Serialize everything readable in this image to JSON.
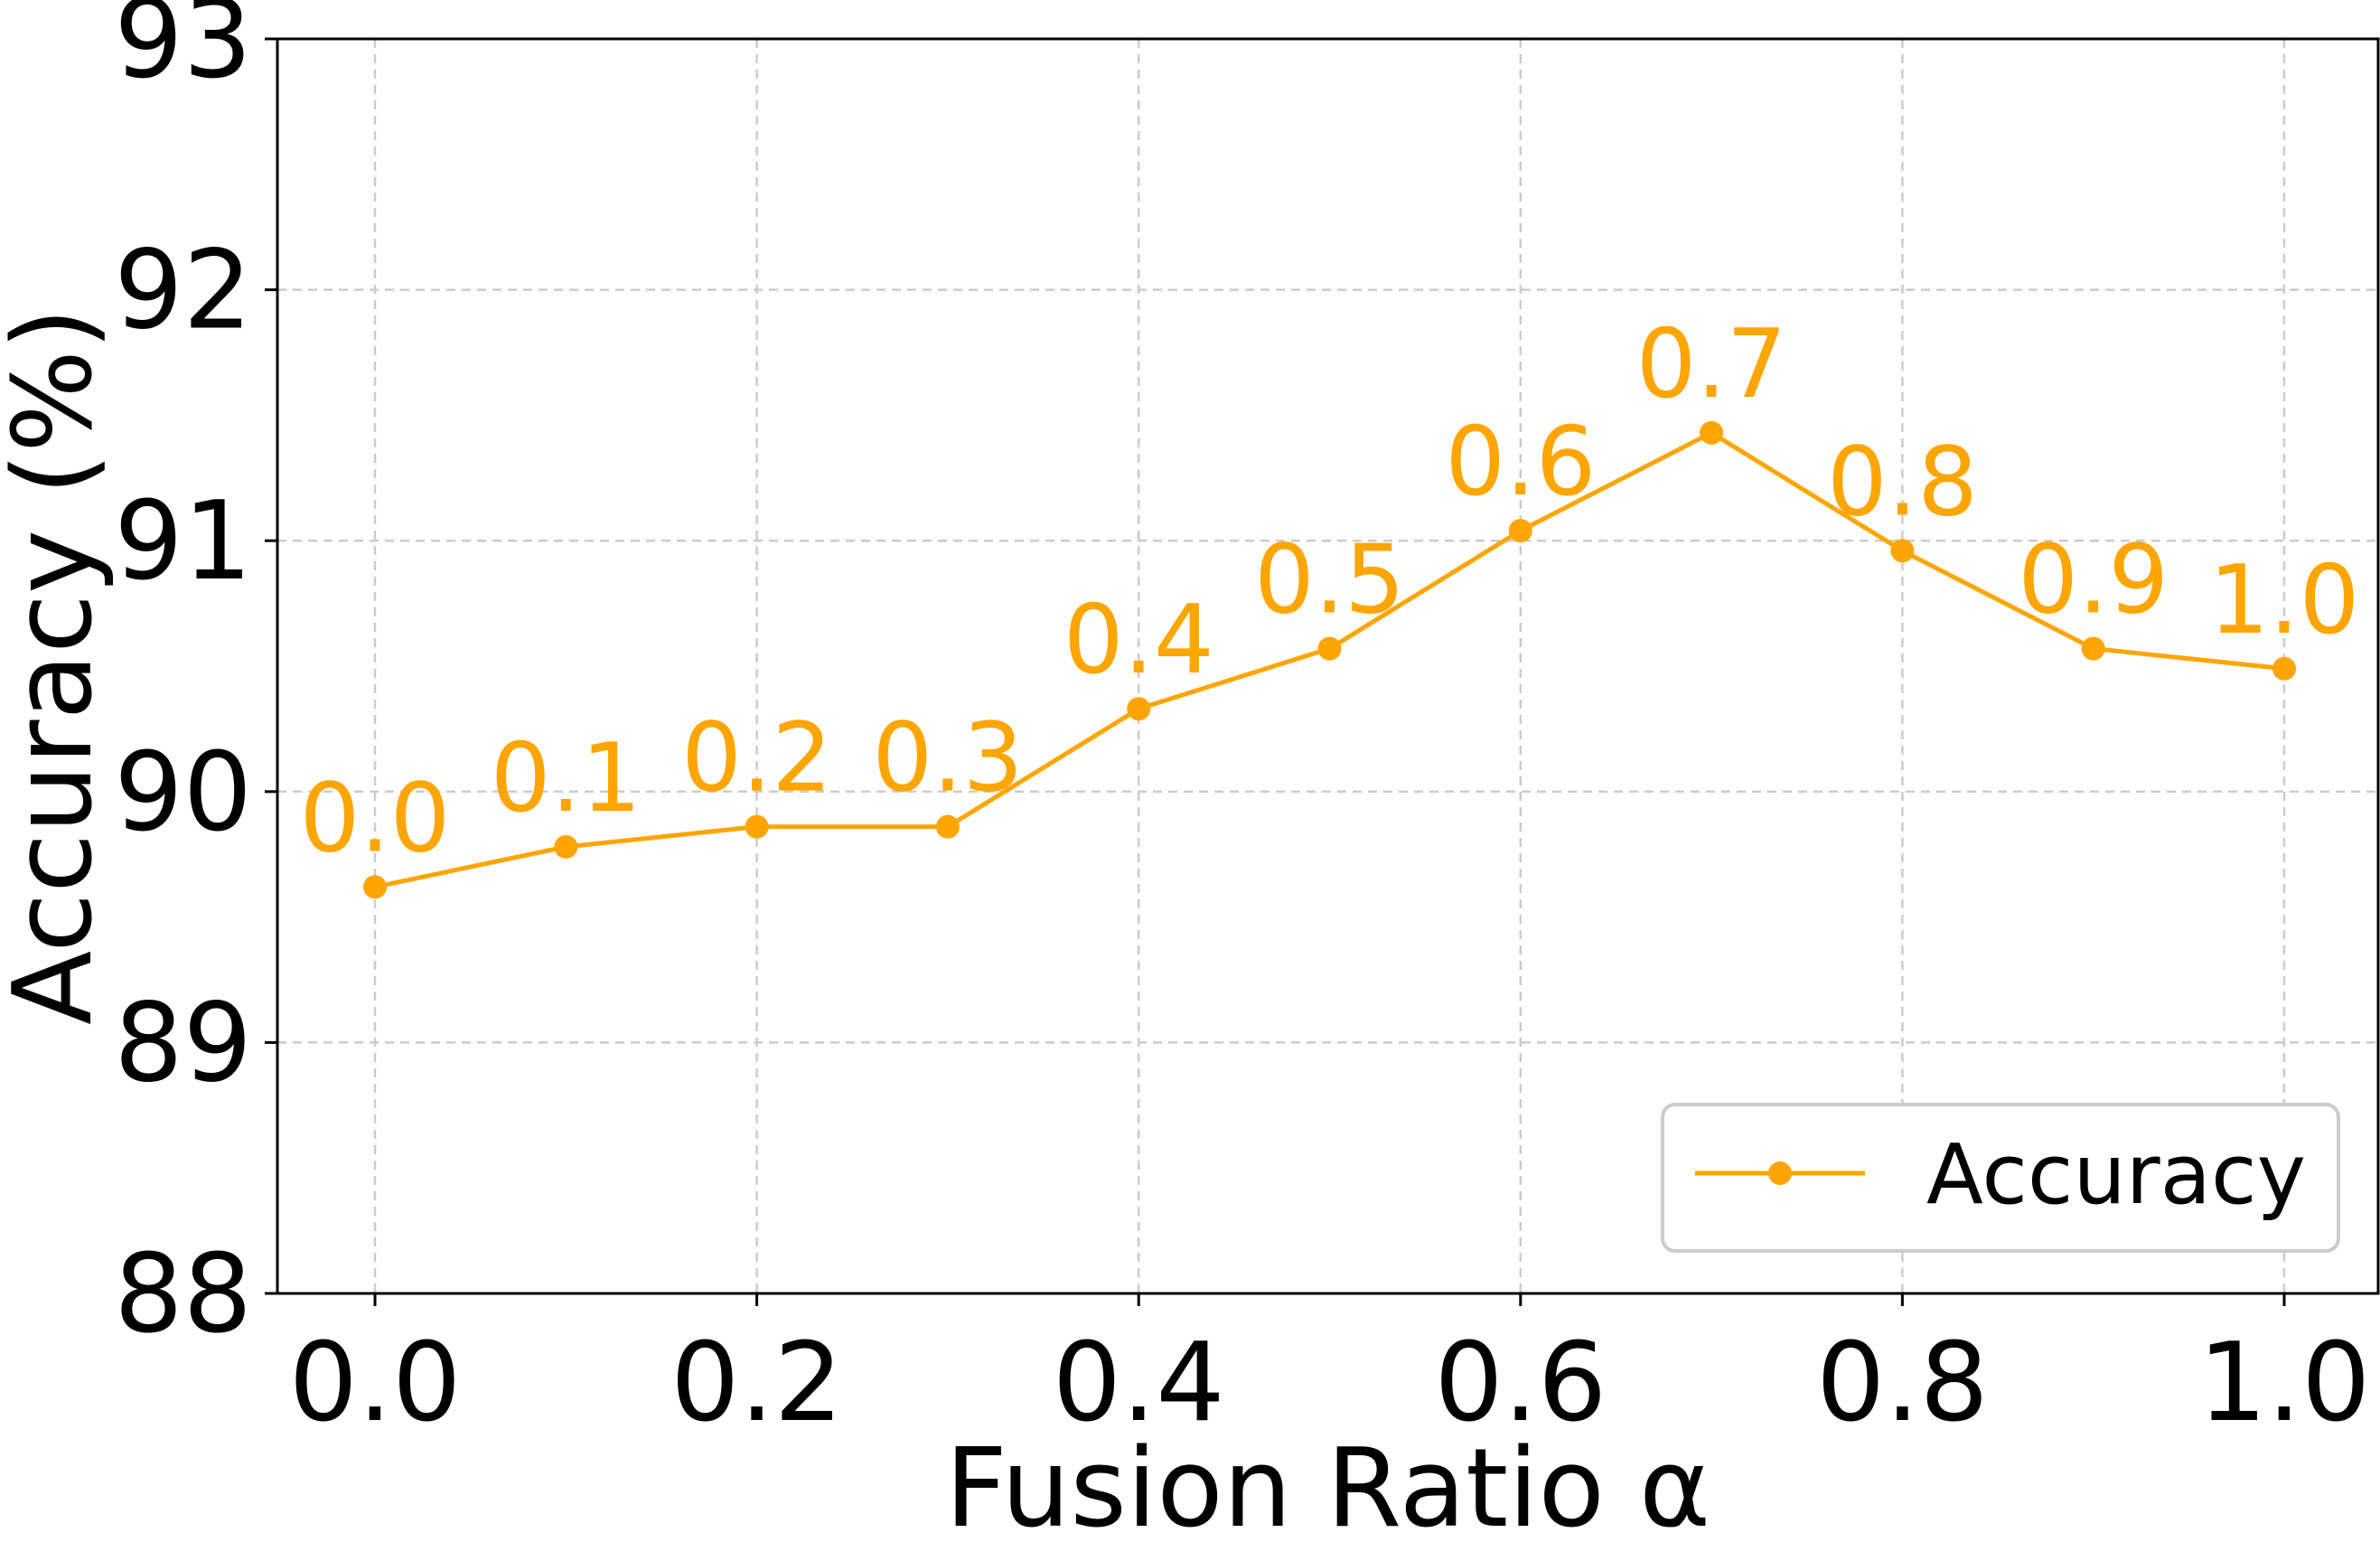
{
  "chart_data": {
    "type": "line",
    "title": "",
    "xlabel": "Fusion Ratio α",
    "ylabel": "Accuracy (%)",
    "xlim": [
      -0.05,
      1.05
    ],
    "ylim": [
      88,
      93
    ],
    "xticks": [
      0.0,
      0.2,
      0.4,
      0.6,
      0.8,
      1.0
    ],
    "xtick_labels": [
      "0.0",
      "0.2",
      "0.4",
      "0.6",
      "0.8",
      "1.0"
    ],
    "yticks": [
      88,
      89,
      90,
      91,
      92,
      93
    ],
    "ytick_labels": [
      "88",
      "89",
      "90",
      "91",
      "92",
      "93"
    ],
    "grid": true,
    "legend_position": "bottom-right",
    "series": [
      {
        "name": "Accuracy",
        "color": "#FFA500",
        "marker": "circle",
        "x": [
          0.0,
          0.1,
          0.2,
          0.3,
          0.4,
          0.5,
          0.6,
          0.7,
          0.8,
          0.9,
          1.0
        ],
        "y": [
          89.62,
          89.78,
          89.86,
          89.86,
          90.33,
          90.57,
          91.04,
          91.43,
          90.96,
          90.57,
          90.49
        ],
        "point_labels": [
          "0.0",
          "0.1",
          "0.2",
          "0.3",
          "0.4",
          "0.5",
          "0.6",
          "0.7",
          "0.8",
          "0.9",
          "1.0"
        ]
      }
    ]
  }
}
